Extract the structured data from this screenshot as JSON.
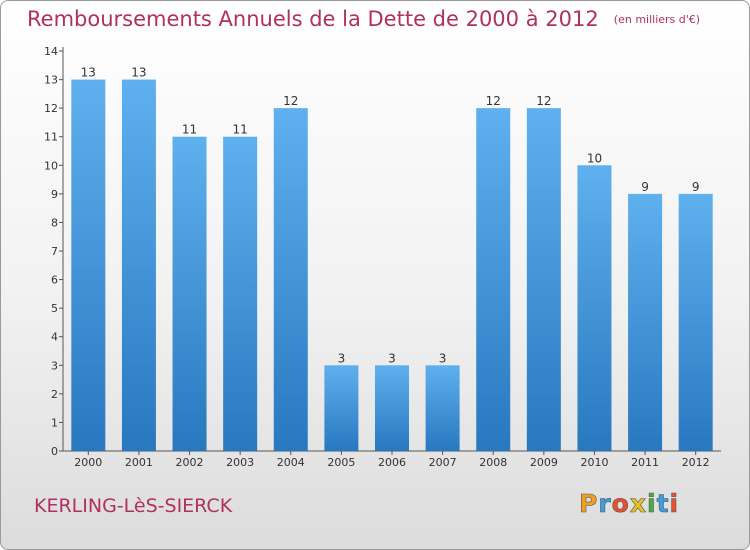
{
  "title": "Remboursements Annuels de la Dette de 2000 à 2012",
  "unit": "(en milliers d'€)",
  "commune": "KERLING-LèS-SIERCK",
  "logo": {
    "letters": [
      "P",
      "r",
      "o",
      "x",
      "i",
      "t",
      "i"
    ],
    "colors": [
      "#f0a020",
      "#3aa0e0",
      "#e85030",
      "#e8c020",
      "#40b040",
      "#3aa0e0",
      "#e85030"
    ]
  },
  "colors": {
    "bar": "#3a8fd8",
    "title": "#b03060"
  },
  "chart_data": {
    "type": "bar",
    "title": "Remboursements Annuels de la Dette de 2000 à 2012",
    "categories": [
      "2000",
      "2001",
      "2002",
      "2003",
      "2004",
      "2005",
      "2006",
      "2007",
      "2008",
      "2009",
      "2010",
      "2011",
      "2012"
    ],
    "values": [
      13,
      13,
      11,
      11,
      12,
      3,
      3,
      3,
      12,
      12,
      10,
      9,
      9
    ],
    "ylim": [
      0,
      14
    ],
    "yticks": [
      0,
      1,
      2,
      3,
      4,
      5,
      6,
      7,
      8,
      9,
      10,
      11,
      12,
      13,
      14
    ],
    "grid": false,
    "xlabel": "",
    "ylabel": ""
  }
}
